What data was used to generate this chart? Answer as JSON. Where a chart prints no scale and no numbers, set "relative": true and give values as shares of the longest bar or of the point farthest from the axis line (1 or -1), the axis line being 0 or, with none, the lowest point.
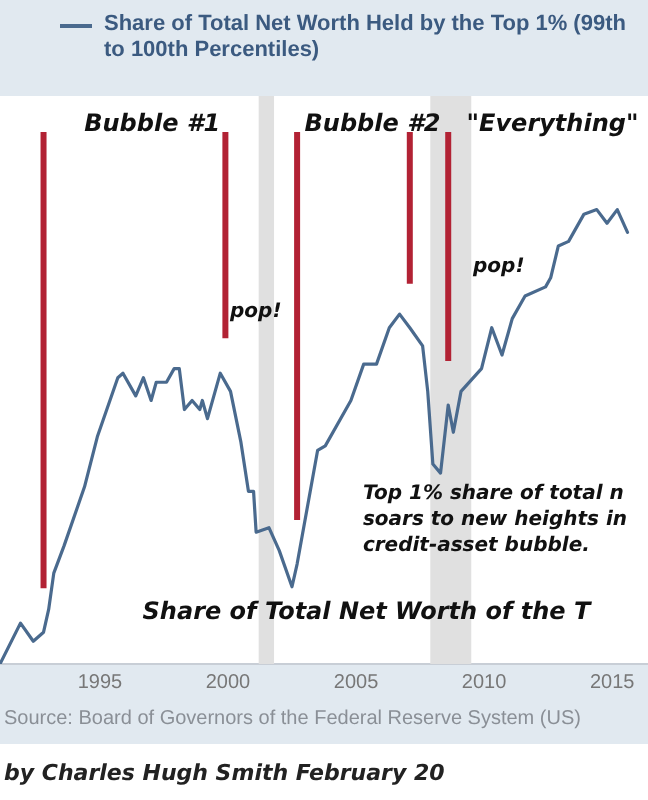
{
  "chart_data": {
    "type": "line",
    "relative": true,
    "series": [
      {
        "name": "Share of Total Net Worth Held by the Top 1% (99th to 100th Percentiles)",
        "color": "#4a6a8e",
        "x": [
          1991.1,
          1991.9,
          1992.4,
          1992.8,
          1993.0,
          1993.2,
          1993.6,
          1994.4,
          1994.9,
          1995.7,
          1995.9,
          1996.4,
          1996.7,
          1997.0,
          1997.2,
          1997.6,
          1997.9,
          1998.1,
          1998.3,
          1998.6,
          1998.9,
          1999.0,
          1999.2,
          1999.7,
          2000.1,
          2000.5,
          2000.8,
          2001.0,
          2001.1,
          2001.6,
          2002.0,
          2002.5,
          2002.7,
          2003.5,
          2003.8,
          2004.8,
          2005.3,
          2005.8,
          2006.3,
          2006.7,
          2007.1,
          2007.6,
          2007.8,
          2008.0,
          2008.3,
          2008.6,
          2008.8,
          2009.1,
          2009.9,
          2010.3,
          2010.7,
          2011.1,
          2011.6,
          2012.4,
          2012.6,
          2012.9,
          2013.3,
          2013.9,
          2014.4,
          2014.8,
          2015.2,
          2015.6
        ],
        "values": [
          0,
          0.09,
          0.05,
          0.07,
          0.12,
          0.2,
          0.26,
          0.39,
          0.5,
          0.63,
          0.64,
          0.59,
          0.63,
          0.58,
          0.62,
          0.62,
          0.65,
          0.65,
          0.56,
          0.58,
          0.56,
          0.58,
          0.54,
          0.64,
          0.6,
          0.49,
          0.38,
          0.38,
          0.29,
          0.3,
          0.25,
          0.17,
          0.22,
          0.47,
          0.48,
          0.58,
          0.66,
          0.66,
          0.74,
          0.77,
          0.74,
          0.7,
          0.6,
          0.44,
          0.42,
          0.57,
          0.51,
          0.6,
          0.65,
          0.74,
          0.68,
          0.76,
          0.81,
          0.83,
          0.85,
          0.92,
          0.93,
          0.99,
          1,
          0.97,
          1,
          0.95
        ]
      }
    ],
    "xlim": [
      1991.1,
      2016.4
    ],
    "xticks": [
      1995,
      2000,
      2005,
      2010,
      2015
    ],
    "tick_labels": "x",
    "grid": false,
    "legend": "top",
    "marker": "none",
    "line_style": "solid",
    "ref_lines": [
      {
        "axis": "x",
        "value": 1992.8,
        "color": "#b22234"
      },
      {
        "axis": "x",
        "value": 1999.9,
        "color": "#b22234"
      },
      {
        "axis": "x",
        "value": 2002.7,
        "color": "#b22234"
      },
      {
        "axis": "x",
        "value": 2007.1,
        "color": "#b22234"
      },
      {
        "axis": "x",
        "value": 2008.6,
        "color": "#b22234"
      }
    ],
    "bands": [
      {
        "axis": "x",
        "from": 2001.2,
        "to": 2001.8,
        "color": "#e0e0e0"
      },
      {
        "axis": "x",
        "from": 2007.9,
        "to": 2009.5,
        "color": "#e0e0e0"
      }
    ],
    "annotations": [
      "Bubble #1",
      "Bubble #2",
      "\"Everything\"",
      "pop!",
      "pop!",
      "Top 1% share of total n\nsoars to new heights in\ncredit-asset bubble.",
      "Share of Total Net Worth of the T",
      "Source: Board of Governors of the Federal Reserve System (US)",
      "by Charles Hugh Smith   February 20"
    ]
  }
}
